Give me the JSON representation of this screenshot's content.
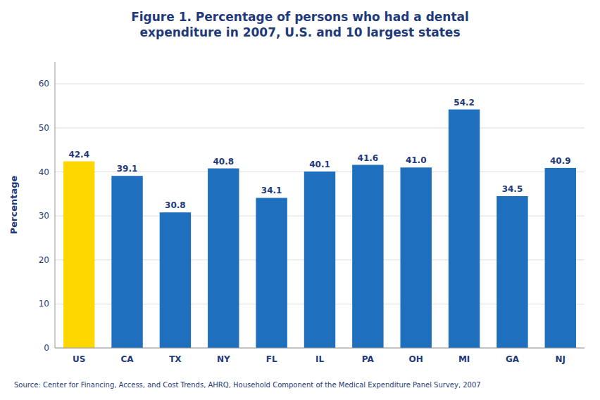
{
  "chart_data": {
    "type": "bar",
    "title": "Figure 1.  Percentage of persons who had a dental\nexpenditure in 2007, U.S. and 10 largest states",
    "categories": [
      "US",
      "CA",
      "TX",
      "NY",
      "FL",
      "IL",
      "PA",
      "OH",
      "MI",
      "GA",
      "NJ"
    ],
    "values": [
      42.4,
      39.1,
      30.8,
      40.8,
      34.1,
      40.1,
      41.6,
      41.0,
      54.2,
      34.5,
      40.9
    ],
    "value_labels": [
      "42.4",
      "39.1",
      "30.8",
      "40.8",
      "34.1",
      "40.1",
      "41.6",
      "41.0",
      "54.2",
      "34.5",
      "40.9"
    ],
    "colors": [
      "#FFD700",
      "#1F6FBF",
      "#1F6FBF",
      "#1F6FBF",
      "#1F6FBF",
      "#1F6FBF",
      "#1F6FBF",
      "#1F6FBF",
      "#1F6FBF",
      "#1F6FBF",
      "#1F6FBF"
    ],
    "ylabel": "Percentage",
    "ylim": [
      0,
      65
    ],
    "yticks": [
      0,
      10,
      20,
      30,
      40,
      50,
      60
    ],
    "grid": true,
    "data_labels": true,
    "annotations": [
      "Source: Center for Financing, Access, and Cost Trends, AHRQ, Household Component of the Medical Expenditure Panel Survey, 2007"
    ]
  }
}
